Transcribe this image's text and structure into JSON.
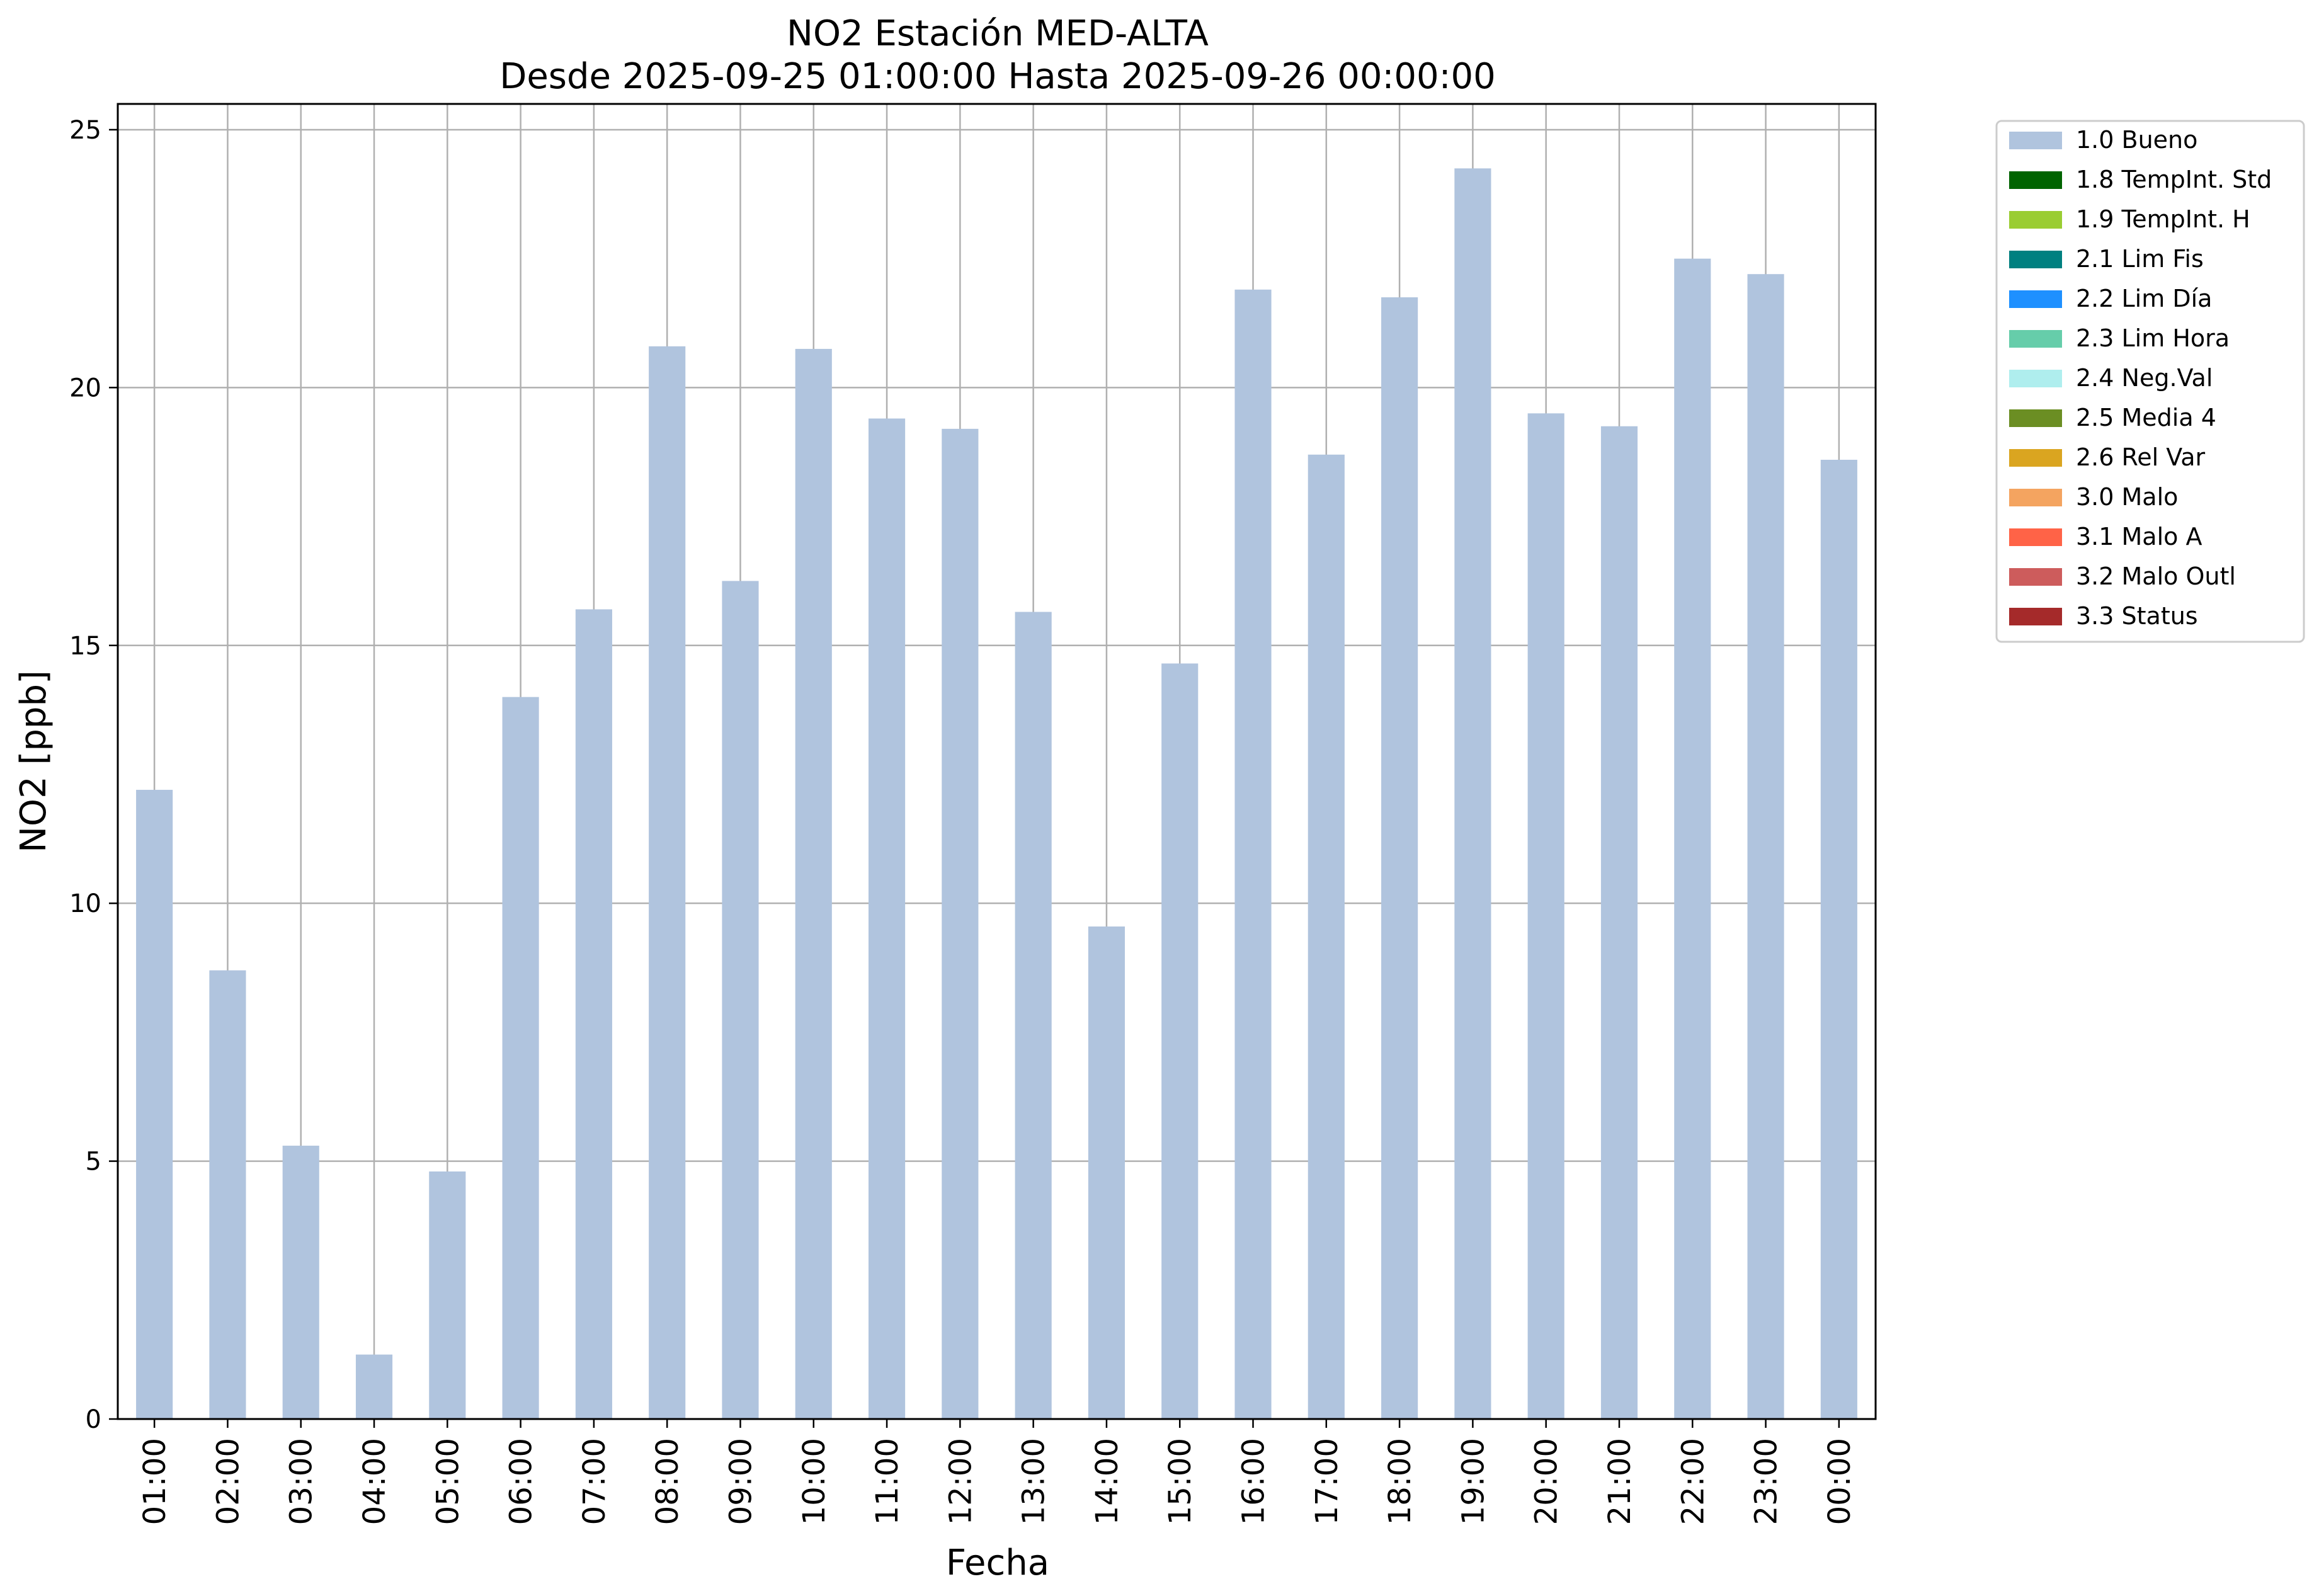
{
  "chart_data": {
    "type": "bar",
    "title": "NO2 Estación MED-ALTA",
    "subtitle": "Desde 2025-09-25 01:00:00 Hasta 2025-09-26 00:00:00",
    "xlabel": "Fecha",
    "ylabel": "NO2 [ppb]",
    "ylim": [
      0,
      25.5
    ],
    "yticks": [
      0,
      5,
      10,
      15,
      20,
      25
    ],
    "grid": true,
    "legend_position": "outside-top-right",
    "categories": [
      "01:00",
      "02:00",
      "03:00",
      "04:00",
      "05:00",
      "06:00",
      "07:00",
      "08:00",
      "09:00",
      "10:00",
      "11:00",
      "12:00",
      "13:00",
      "14:00",
      "15:00",
      "16:00",
      "17:00",
      "18:00",
      "19:00",
      "20:00",
      "21:00",
      "22:00",
      "23:00",
      "00:00"
    ],
    "series": [
      {
        "name": "1.0 Bueno",
        "color": "#b0c4de",
        "values": [
          12.2,
          8.7,
          5.3,
          1.25,
          4.8,
          14.0,
          15.7,
          20.8,
          16.25,
          20.75,
          19.4,
          19.2,
          15.65,
          9.55,
          14.65,
          21.9,
          18.7,
          21.75,
          24.25,
          19.5,
          19.25,
          22.5,
          22.2,
          18.6
        ]
      }
    ],
    "legend": [
      {
        "label": "1.0 Bueno",
        "color": "#b0c4de"
      },
      {
        "label": "1.8 TempInt. Std",
        "color": "#006400"
      },
      {
        "label": "1.9 TempInt. H",
        "color": "#9acd32"
      },
      {
        "label": "2.1 Lim Fis",
        "color": "#008080"
      },
      {
        "label": "2.2 Lim Día",
        "color": "#1e90ff"
      },
      {
        "label": "2.3 Lim Hora",
        "color": "#66cdaa"
      },
      {
        "label": "2.4 Neg.Val",
        "color": "#afeeee"
      },
      {
        "label": "2.5 Media 4",
        "color": "#6b8e23"
      },
      {
        "label": "2.6 Rel Var",
        "color": "#daa520"
      },
      {
        "label": "3.0 Malo",
        "color": "#f4a460"
      },
      {
        "label": "3.1 Malo A",
        "color": "#ff6347"
      },
      {
        "label": "3.2 Malo Outl",
        "color": "#cd5c5c"
      },
      {
        "label": "3.3 Status",
        "color": "#a52a2a"
      }
    ]
  }
}
